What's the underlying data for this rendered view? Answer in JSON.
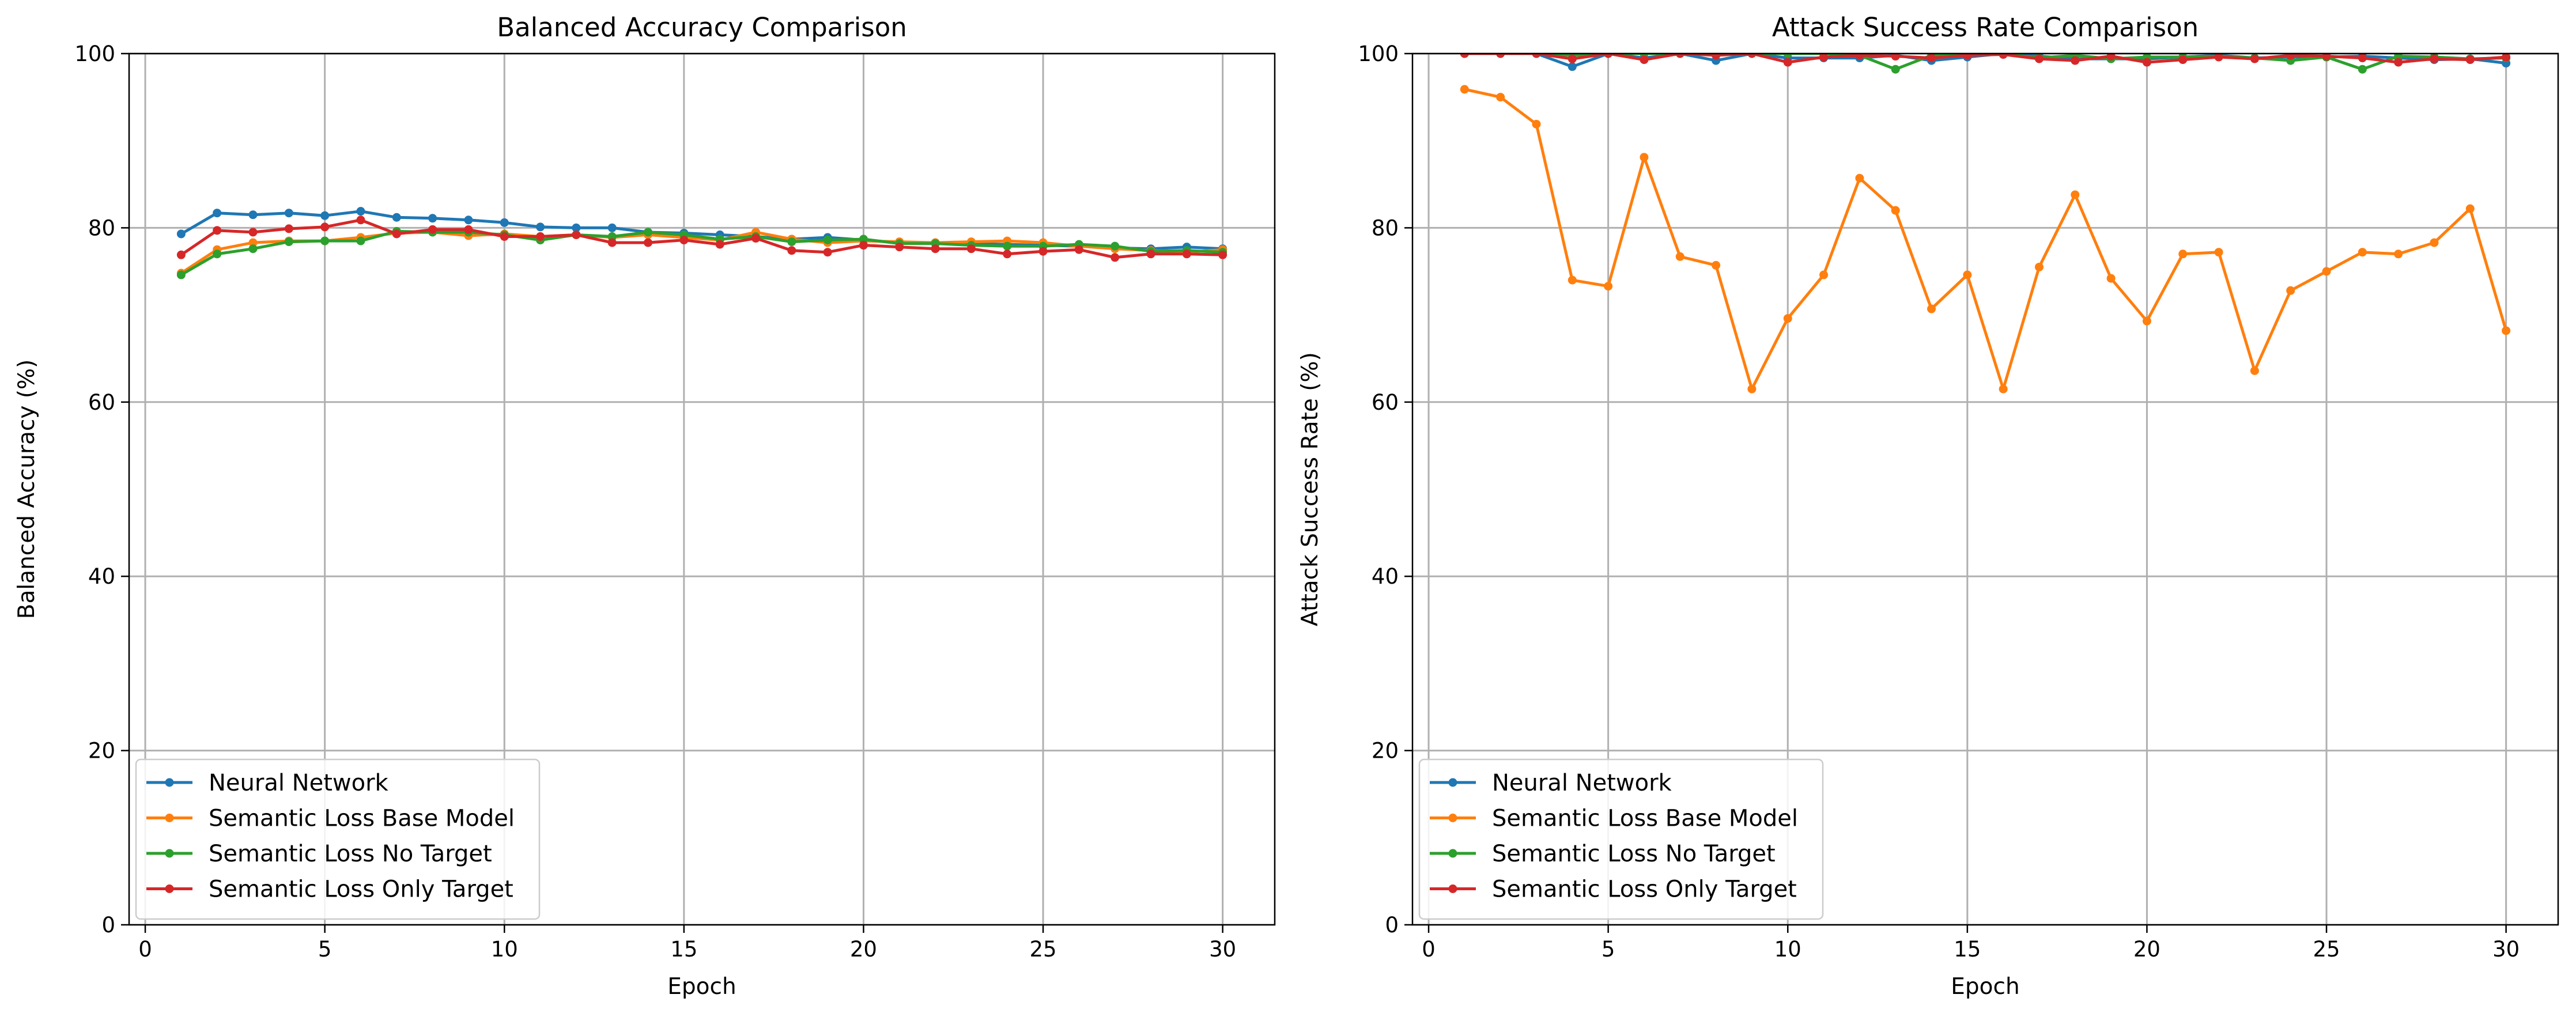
{
  "chart_data": [
    {
      "type": "line",
      "title": "Balanced Accuracy Comparison",
      "xlabel": "Epoch",
      "ylabel": "Balanced Accuracy (%)",
      "xlim": [
        -0.45,
        31.45
      ],
      "ylim": [
        0,
        100
      ],
      "xticks": [
        0,
        5,
        10,
        15,
        20,
        25,
        30
      ],
      "yticks": [
        0,
        20,
        40,
        60,
        80,
        100
      ],
      "grid": true,
      "legend_position": "lower-left",
      "x": [
        1,
        2,
        3,
        4,
        5,
        6,
        7,
        8,
        9,
        10,
        11,
        12,
        13,
        14,
        15,
        16,
        17,
        18,
        19,
        20,
        21,
        22,
        23,
        24,
        25,
        26,
        27,
        28,
        29,
        30
      ],
      "series": [
        {
          "name": "Neural Network",
          "color": "#1f77b4",
          "values": [
            79.3,
            81.7,
            81.5,
            81.7,
            81.4,
            81.9,
            81.2,
            81.1,
            80.9,
            80.6,
            80.1,
            80.0,
            80.0,
            79.5,
            79.4,
            79.2,
            79.0,
            78.7,
            78.9,
            78.6,
            78.3,
            78.3,
            78.2,
            78.1,
            78.0,
            77.9,
            77.7,
            77.6,
            77.8,
            77.6
          ]
        },
        {
          "name": "Semantic Loss Base Model",
          "color": "#ff7f0e",
          "values": [
            74.8,
            77.5,
            78.3,
            78.5,
            78.5,
            78.9,
            79.4,
            79.5,
            79.1,
            79.3,
            79.0,
            79.2,
            78.9,
            79.2,
            78.9,
            78.6,
            79.5,
            78.7,
            78.3,
            78.5,
            78.4,
            78.3,
            78.4,
            78.5,
            78.3,
            77.9,
            77.6,
            77.4,
            77.2,
            77.5
          ]
        },
        {
          "name": "Semantic Loss No Target",
          "color": "#2ca02c",
          "values": [
            74.6,
            77.0,
            77.6,
            78.4,
            78.5,
            78.5,
            79.6,
            79.5,
            79.5,
            79.2,
            78.6,
            79.2,
            79.0,
            79.5,
            79.2,
            78.7,
            79.0,
            78.4,
            78.6,
            78.7,
            78.2,
            78.2,
            78.0,
            77.9,
            77.9,
            78.1,
            77.9,
            77.3,
            77.4,
            77.2
          ]
        },
        {
          "name": "Semantic Loss Only Target",
          "color": "#d62728",
          "values": [
            76.9,
            79.7,
            79.5,
            79.9,
            80.1,
            80.9,
            79.3,
            79.8,
            79.8,
            79.0,
            79.0,
            79.2,
            78.3,
            78.3,
            78.6,
            78.1,
            78.8,
            77.4,
            77.2,
            78.0,
            77.8,
            77.6,
            77.6,
            77.0,
            77.3,
            77.5,
            76.6,
            77.0,
            77.0,
            76.9
          ]
        }
      ]
    },
    {
      "type": "line",
      "title": "Attack Success Rate Comparison",
      "xlabel": "Epoch",
      "ylabel": "Attack Success Rate (%)",
      "xlim": [
        -0.45,
        31.45
      ],
      "ylim": [
        0,
        100
      ],
      "xticks": [
        0,
        5,
        10,
        15,
        20,
        25,
        30
      ],
      "yticks": [
        0,
        20,
        40,
        60,
        80,
        100
      ],
      "grid": true,
      "legend_position": "lower-left",
      "x": [
        1,
        2,
        3,
        4,
        5,
        6,
        7,
        8,
        9,
        10,
        11,
        12,
        13,
        14,
        15,
        16,
        17,
        18,
        19,
        20,
        21,
        22,
        23,
        24,
        25,
        26,
        27,
        28,
        29,
        30
      ],
      "series": [
        {
          "name": "Neural Network",
          "color": "#1f77b4",
          "values": [
            100.0,
            100.0,
            100.0,
            98.5,
            100.0,
            99.5,
            100.0,
            99.2,
            100.0,
            99.5,
            99.5,
            99.5,
            99.8,
            99.2,
            99.6,
            100.0,
            99.7,
            99.4,
            99.4,
            99.4,
            99.6,
            99.8,
            99.5,
            99.6,
            99.6,
            99.7,
            99.5,
            99.3,
            99.4,
            98.9
          ]
        },
        {
          "name": "Semantic Loss Base Model",
          "color": "#ff7f0e",
          "values": [
            95.9,
            95.0,
            91.9,
            74.0,
            73.3,
            88.1,
            76.7,
            75.7,
            61.5,
            69.6,
            74.6,
            85.7,
            82.0,
            70.7,
            74.6,
            61.5,
            75.5,
            83.8,
            74.2,
            69.3,
            77.0,
            77.2,
            63.6,
            72.8,
            75.0,
            77.2,
            77.0,
            78.3,
            82.2,
            68.2
          ]
        },
        {
          "name": "Semantic Loss No Target",
          "color": "#2ca02c",
          "values": [
            100.0,
            100.0,
            100.0,
            99.8,
            100.0,
            100.0,
            100.0,
            100.0,
            100.0,
            100.0,
            100.0,
            99.8,
            98.2,
            99.8,
            100.0,
            100.0,
            99.5,
            99.8,
            99.4,
            99.6,
            99.6,
            99.7,
            99.5,
            99.2,
            99.6,
            98.2,
            99.7,
            99.6,
            99.4,
            99.5
          ]
        },
        {
          "name": "Semantic Loss Only Target",
          "color": "#d62728",
          "values": [
            100.0,
            100.0,
            100.0,
            99.4,
            100.0,
            99.3,
            100.0,
            99.8,
            100.0,
            99.0,
            99.6,
            99.8,
            99.7,
            99.5,
            99.8,
            99.9,
            99.4,
            99.2,
            99.7,
            99.0,
            99.3,
            99.6,
            99.4,
            99.8,
            99.7,
            99.5,
            99.0,
            99.4,
            99.3,
            99.6
          ]
        }
      ]
    }
  ]
}
